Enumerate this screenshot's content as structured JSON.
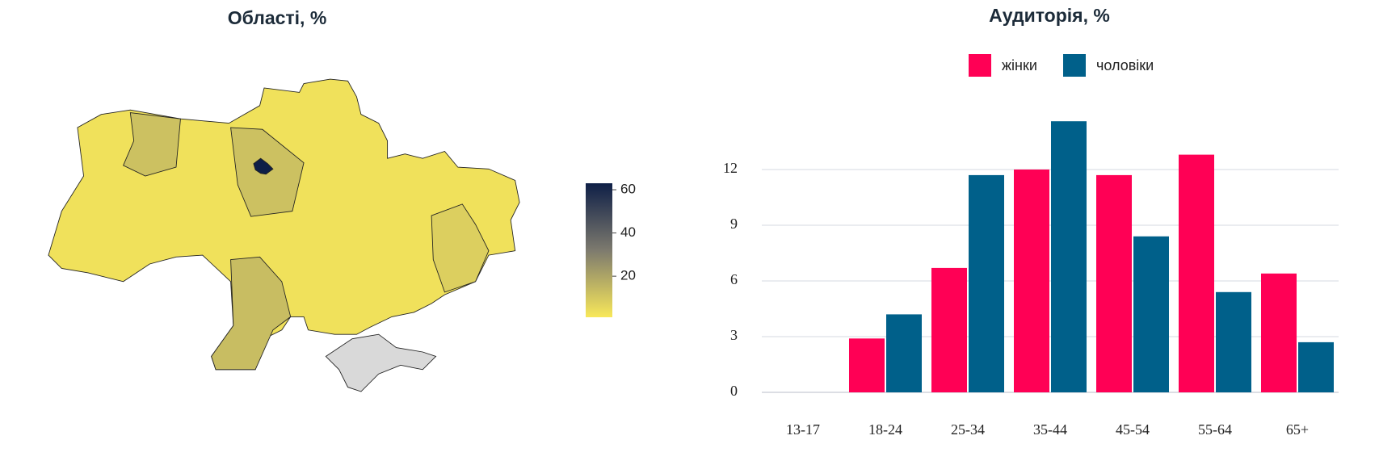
{
  "chart_data": [
    {
      "type": "choropleth",
      "title": "Області, %",
      "categories": [
        null,
        null,
        null,
        null,
        null,
        null,
        null
      ],
      "values": [
        3,
        12,
        12,
        63,
        13,
        8,
        null
      ],
      "colorscale": [
        "#f8e85a",
        "#7d7a6e",
        "#0e1f47"
      ],
      "missing_color": "#d9d9d9",
      "zlim": [
        1,
        63
      ],
      "zticks": [
        20,
        40,
        60
      ]
    },
    {
      "type": "bar",
      "title": "Аудиторія, %",
      "categories": [
        "13-17",
        "18-24",
        "25-34",
        "35-44",
        "45-54",
        "55-64",
        "65+"
      ],
      "series": [
        {
          "name": "жінки",
          "color": "#ff0055",
          "values": [
            null,
            2.9,
            6.7,
            12,
            11.7,
            12.8,
            6.4
          ]
        },
        {
          "name": "чоловіки",
          "color": "#00608a",
          "values": [
            null,
            4.2,
            11.7,
            14.6,
            8.4,
            5.4,
            2.7
          ]
        }
      ],
      "ylim": [
        0,
        15
      ],
      "yticks": [
        0,
        3,
        6,
        9,
        12
      ],
      "grid": true
    }
  ]
}
